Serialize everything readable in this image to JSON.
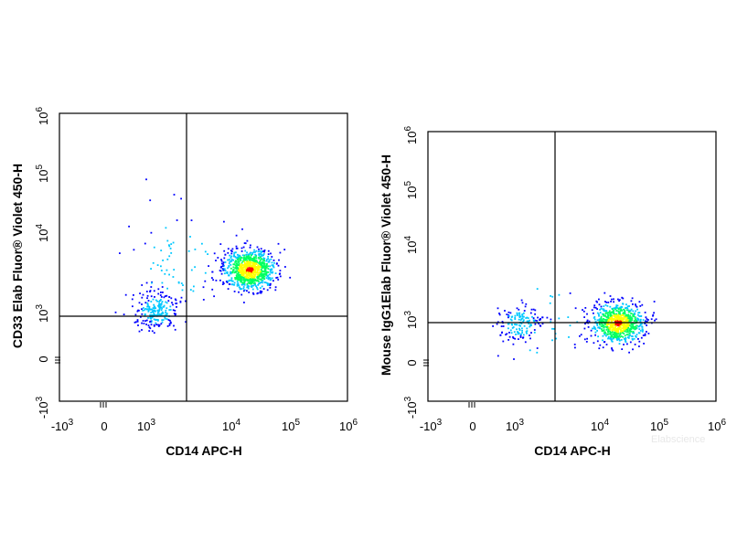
{
  "watermark": "Elabscience",
  "chart_data": [
    {
      "type": "scatter",
      "subtype": "flow-cytometry-density-plot",
      "xlabel": "CD14 APC-H",
      "ylabel": "CD33 Elab Fluor® Violet 450-H",
      "x_ticks": [
        {
          "base": "-10",
          "exp": "3"
        },
        {
          "base": "0",
          "exp": ""
        },
        {
          "base": "10",
          "exp": "3"
        },
        {
          "base": "10",
          "exp": "4"
        },
        {
          "base": "10",
          "exp": "5"
        },
        {
          "base": "10",
          "exp": "6"
        }
      ],
      "y_ticks": [
        {
          "base": "-10",
          "exp": "3"
        },
        {
          "base": "0",
          "exp": ""
        },
        {
          "base": "10",
          "exp": "3"
        },
        {
          "base": "10",
          "exp": "4"
        },
        {
          "base": "10",
          "exp": "5"
        },
        {
          "base": "10",
          "exp": "6"
        }
      ],
      "scale": "biexponential",
      "xlim": [
        -1000,
        1000000
      ],
      "ylim": [
        -1000,
        1000000
      ],
      "quadrant_gate": {
        "x": 2500,
        "y": 900
      },
      "populations": [
        {
          "center": [
            20000,
            2000
          ],
          "spread": "dense",
          "events": 900
        },
        {
          "center": [
            400,
            300
          ],
          "spread": "moderate",
          "events": 230
        },
        {
          "center": [
            1000,
            3000
          ],
          "spread": "sparse",
          "events": 70
        }
      ],
      "colormap": [
        "#0000ff",
        "#00c8ff",
        "#00ff60",
        "#ffff00",
        "#ff0000"
      ]
    },
    {
      "type": "scatter",
      "subtype": "flow-cytometry-density-plot",
      "xlabel": "CD14 APC-H",
      "ylabel": "Mouse IgG1Elab Fluor® Violet 450-H",
      "x_ticks": [
        {
          "base": "-10",
          "exp": "3"
        },
        {
          "base": "0",
          "exp": ""
        },
        {
          "base": "10",
          "exp": "3"
        },
        {
          "base": "10",
          "exp": "4"
        },
        {
          "base": "10",
          "exp": "5"
        },
        {
          "base": "10",
          "exp": "6"
        }
      ],
      "y_ticks": [
        {
          "base": "-10",
          "exp": "3"
        },
        {
          "base": "0",
          "exp": ""
        },
        {
          "base": "10",
          "exp": "3"
        },
        {
          "base": "10",
          "exp": "4"
        },
        {
          "base": "10",
          "exp": "5"
        },
        {
          "base": "10",
          "exp": "6"
        }
      ],
      "scale": "biexponential",
      "xlim": [
        -1000,
        1000000
      ],
      "ylim": [
        -1000,
        1000000
      ],
      "quadrant_gate": {
        "x": 2500,
        "y": 800
      },
      "populations": [
        {
          "center": [
            20000,
            200
          ],
          "spread": "dense",
          "events": 800
        },
        {
          "center": [
            300,
            200
          ],
          "spread": "moderate",
          "events": 150
        },
        {
          "center": [
            1200,
            200
          ],
          "spread": "sparse",
          "events": 30
        }
      ],
      "colormap": [
        "#0000ff",
        "#00c8ff",
        "#00ff60",
        "#ffff00",
        "#ff0000"
      ]
    }
  ]
}
